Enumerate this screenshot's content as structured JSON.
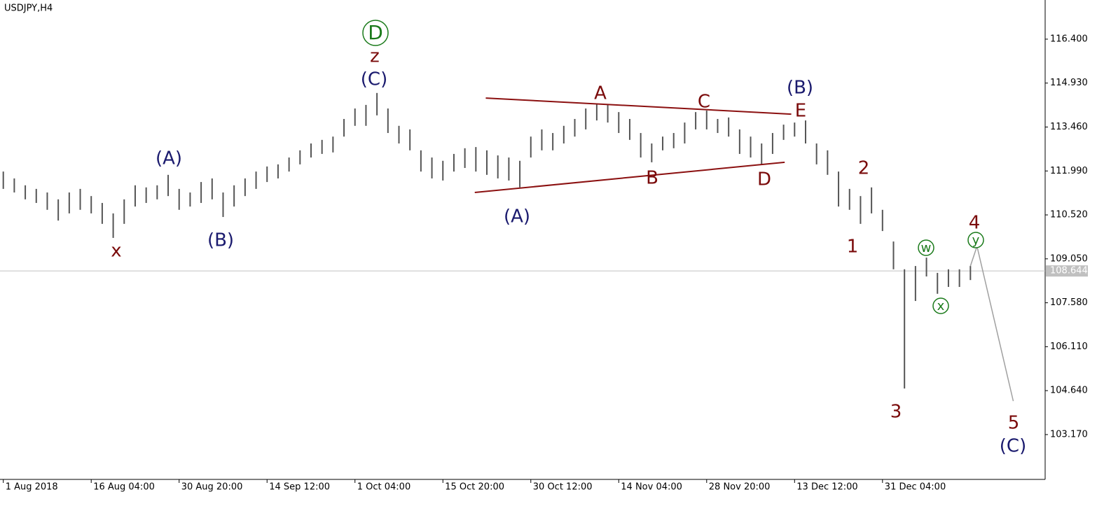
{
  "chart_data": {
    "type": "hlbar",
    "title": "USDJPY,H4",
    "color": "#555555",
    "x": [
      0,
      1,
      2,
      3,
      4,
      5,
      6,
      7,
      8,
      9,
      10,
      11,
      12,
      13,
      14,
      15,
      16,
      17,
      18,
      19,
      20,
      21,
      22,
      23,
      24,
      25,
      26,
      27,
      28,
      29,
      30,
      31,
      32,
      33,
      34,
      35,
      36,
      37,
      38,
      39,
      40,
      41,
      42,
      43,
      44,
      45,
      46,
      47,
      48,
      49,
      50,
      51,
      52,
      53,
      54,
      55,
      56,
      57,
      58,
      59,
      60,
      61,
      62,
      63,
      64,
      65,
      66,
      67,
      68,
      69,
      70,
      71,
      72,
      73,
      74,
      75,
      76,
      77,
      78,
      79,
      80,
      81,
      82,
      83,
      84,
      85,
      86,
      87,
      88
    ],
    "high": [
      111.97,
      111.74,
      111.51,
      111.39,
      111.27,
      111.04,
      111.27,
      111.39,
      111.15,
      110.92,
      110.57,
      111.04,
      111.51,
      111.44,
      111.51,
      111.86,
      111.39,
      111.27,
      111.62,
      111.74,
      111.27,
      111.51,
      111.74,
      111.97,
      112.14,
      112.21,
      112.44,
      112.68,
      112.91,
      113.03,
      113.14,
      113.73,
      114.08,
      114.2,
      114.6,
      114.08,
      113.5,
      113.38,
      112.68,
      112.44,
      112.33,
      112.56,
      112.75,
      112.79,
      112.68,
      112.51,
      112.44,
      112.33,
      113.14,
      113.38,
      113.26,
      113.5,
      113.73,
      114.08,
      114.25,
      114.2,
      113.96,
      113.73,
      113.26,
      112.91,
      113.14,
      113.26,
      113.61,
      113.96,
      114.01,
      113.73,
      113.78,
      113.38,
      113.14,
      112.91,
      113.26,
      113.54,
      113.61,
      113.68,
      112.91,
      112.68,
      111.97,
      111.39,
      111.15,
      111.44,
      110.69,
      109.63,
      108.7,
      108.81,
      109.09,
      108.58,
      108.7,
      108.7,
      108.81
    ],
    "low": [
      111.39,
      111.27,
      111.04,
      110.92,
      110.69,
      110.33,
      110.57,
      110.69,
      110.57,
      110.22,
      109.75,
      110.22,
      110.8,
      110.92,
      111.04,
      111.15,
      110.69,
      110.8,
      110.92,
      111.04,
      110.45,
      110.8,
      111.15,
      111.39,
      111.62,
      111.74,
      111.97,
      112.21,
      112.44,
      112.56,
      112.61,
      113.14,
      113.5,
      113.5,
      113.85,
      113.26,
      112.91,
      112.68,
      111.97,
      111.74,
      111.67,
      111.97,
      112.09,
      111.97,
      111.86,
      111.74,
      111.67,
      111.44,
      112.44,
      112.68,
      112.68,
      112.91,
      113.14,
      113.38,
      113.68,
      113.61,
      113.26,
      113.03,
      112.44,
      112.28,
      112.68,
      112.75,
      112.91,
      113.38,
      113.38,
      113.26,
      113.14,
      112.56,
      112.44,
      112.21,
      112.56,
      113.03,
      113.14,
      112.91,
      112.21,
      111.86,
      110.8,
      110.69,
      110.22,
      110.57,
      109.98,
      108.7,
      104.71,
      107.64,
      108.46,
      107.88,
      108.11,
      108.11,
      108.34
    ],
    "xlim": [
      -0.3,
      94.8
    ],
    "ylim": [
      101.67,
      117.71
    ],
    "xticks": [
      {
        "value": 0,
        "label": "1 Aug 2018"
      },
      {
        "value": 8,
        "label": "16 Aug 04:00"
      },
      {
        "value": 16,
        "label": "30 Aug 20:00"
      },
      {
        "value": 24,
        "label": "14 Sep 12:00"
      },
      {
        "value": 32,
        "label": "1 Oct 04:00"
      },
      {
        "value": 40,
        "label": "15 Oct 20:00"
      },
      {
        "value": 48,
        "label": "30 Oct 12:00"
      },
      {
        "value": 56,
        "label": "14 Nov 04:00"
      },
      {
        "value": 64,
        "label": "28 Nov 20:00"
      },
      {
        "value": 72,
        "label": "13 Dec 12:00"
      },
      {
        "value": 80,
        "label": "31 Dec 04:00"
      }
    ],
    "yticks": [
      {
        "value": 116.4,
        "label": "116.400"
      },
      {
        "value": 114.93,
        "label": "114.930"
      },
      {
        "value": 113.46,
        "label": "113.460"
      },
      {
        "value": 111.99,
        "label": "111.990"
      },
      {
        "value": 110.52,
        "label": "110.520"
      },
      {
        "value": 109.05,
        "label": "109.050"
      },
      {
        "value": 107.58,
        "label": "107.580"
      },
      {
        "value": 106.11,
        "label": "106.110"
      },
      {
        "value": 104.64,
        "label": "104.640"
      },
      {
        "value": 103.17,
        "label": "103.170"
      }
    ],
    "current_price": 108.644,
    "trendline_color": "#8b1010",
    "trendlines": [
      {
        "x": [
          43.9,
          71.7
        ],
        "y": [
          114.43,
          113.89
        ]
      },
      {
        "x": [
          42.9,
          71.1
        ],
        "y": [
          111.27,
          112.28
        ]
      }
    ],
    "projection_color": "#a0a0a0",
    "projection": {
      "x": [
        88,
        88.6,
        91.9
      ],
      "y": [
        108.81,
        109.47,
        104.29
      ]
    },
    "annotations": [
      {
        "text": "D",
        "color": "#1a7a1a",
        "circled": true
      },
      {
        "text": "z",
        "color": "#7a0a0a"
      },
      {
        "text": "(C)",
        "color": "#1a1a6e"
      },
      {
        "text": "(A)",
        "color": "#1a1a6e"
      },
      {
        "text": "x",
        "color": "#7a0a0a"
      },
      {
        "text": "(B)",
        "color": "#1a1a6e"
      },
      {
        "text": "(A)",
        "color": "#1a1a6e"
      },
      {
        "text": "A",
        "color": "#7a0a0a"
      },
      {
        "text": "B",
        "color": "#7a0a0a"
      },
      {
        "text": "C",
        "color": "#7a0a0a"
      },
      {
        "text": "D",
        "color": "#7a0a0a"
      },
      {
        "text": "E",
        "color": "#7a0a0a"
      },
      {
        "text": "(B)",
        "color": "#1a1a6e"
      },
      {
        "text": "2",
        "color": "#7a0a0a"
      },
      {
        "text": "1",
        "color": "#7a0a0a"
      },
      {
        "text": "3",
        "color": "#7a0a0a"
      },
      {
        "text": "w",
        "color": "#1a7a1a",
        "circled": true
      },
      {
        "text": "x",
        "color": "#1a7a1a",
        "circled": true
      },
      {
        "text": "y",
        "color": "#1a7a1a",
        "circled": true
      },
      {
        "text": "4",
        "color": "#7a0a0a"
      },
      {
        "text": "5",
        "color": "#7a0a0a"
      },
      {
        "text": "(C)",
        "color": "#1a1a6e"
      }
    ]
  }
}
